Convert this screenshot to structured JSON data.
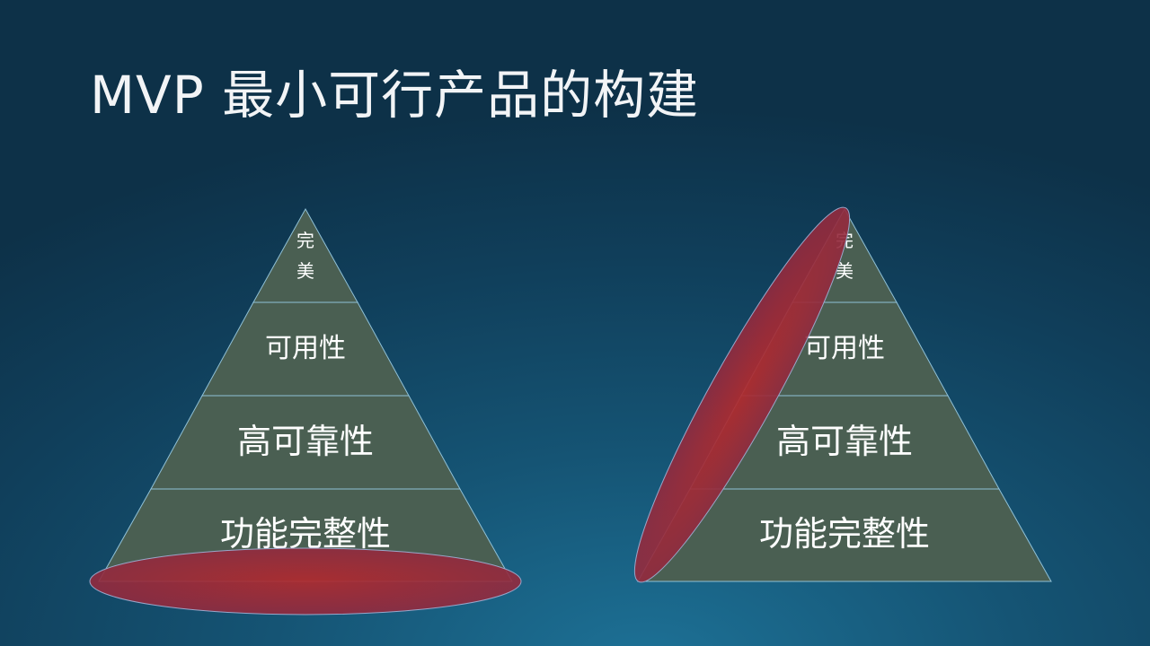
{
  "slide": {
    "title": "MVP 最小可行产品的构建"
  },
  "pyramids": [
    {
      "levels": [
        {
          "label_lines": [
            "完",
            "美"
          ]
        },
        {
          "label_lines": [
            "可用性"
          ]
        },
        {
          "label_lines": [
            "高可靠性"
          ]
        },
        {
          "label_lines": [
            "功能完整性"
          ]
        }
      ],
      "highlight": "base-ellipse"
    },
    {
      "levels": [
        {
          "label_lines": [
            "完",
            "美"
          ]
        },
        {
          "label_lines": [
            "可用性"
          ]
        },
        {
          "label_lines": [
            "高可靠性"
          ]
        },
        {
          "label_lines": [
            "功能完整性"
          ]
        }
      ],
      "highlight": "diagonal-ellipse"
    }
  ],
  "colors": {
    "pyramid_fill": "#4a5f52",
    "pyramid_stroke": "#8fc0d6",
    "highlight_fill": "#a52a35"
  }
}
